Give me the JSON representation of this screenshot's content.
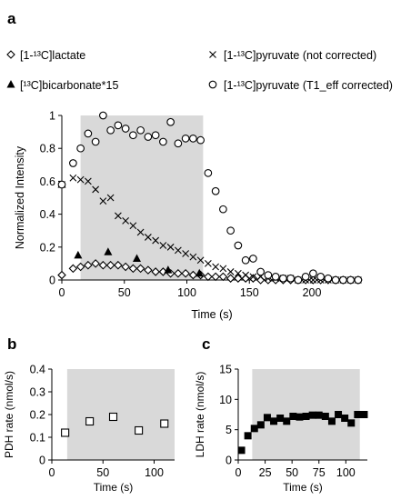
{
  "figure": {
    "panel_labels": [
      "a",
      "b",
      "c"
    ]
  },
  "chart_data": [
    {
      "panel": "a",
      "type": "scatter",
      "xlabel": "Time (s)",
      "ylabel": "Normalized Intensity",
      "xlim": [
        0,
        240
      ],
      "ylim": [
        0,
        1
      ],
      "xticks": [
        0,
        50,
        100,
        150,
        200
      ],
      "yticks": [
        0,
        0.2,
        0.4,
        0.6,
        0.8,
        1
      ],
      "ytick_labels": [
        "0",
        "0.2",
        "0.4",
        "0.6",
        "0.8",
        "1"
      ],
      "grid": false,
      "legend_position": "top",
      "shaded_region": [
        15,
        113
      ],
      "shade_color": "#d9d9d9",
      "series": [
        {
          "name": "[1-¹³C]lactate",
          "marker": "diamond-open",
          "x": [
            0,
            9,
            15,
            21,
            27,
            33,
            39,
            45,
            51,
            57,
            63,
            69,
            75,
            81,
            87,
            93,
            99,
            105,
            111,
            117,
            123,
            129,
            135,
            141,
            147,
            153,
            159,
            165,
            171,
            177,
            183,
            189,
            195,
            201,
            207,
            213,
            219,
            225,
            231,
            237
          ],
          "y": [
            0.03,
            0.07,
            0.08,
            0.09,
            0.1,
            0.09,
            0.09,
            0.09,
            0.08,
            0.07,
            0.07,
            0.06,
            0.05,
            0.05,
            0.04,
            0.04,
            0.04,
            0.03,
            0.03,
            0.02,
            0.02,
            0.02,
            0.01,
            0.01,
            0.01,
            0.01,
            0.0,
            0.0,
            0.0,
            0.0,
            0.0,
            0.0,
            0.0,
            0.0,
            0.0,
            0.0,
            0.0,
            0.0,
            0.0,
            0.0
          ]
        },
        {
          "name": "[1-¹³C]pyruvate (not corrected)",
          "marker": "x",
          "x": [
            0,
            9,
            15,
            21,
            27,
            33,
            39,
            45,
            51,
            57,
            63,
            69,
            75,
            81,
            87,
            93,
            99,
            105,
            111,
            117,
            123,
            129,
            135,
            141,
            147,
            153,
            159,
            165,
            171,
            177,
            183,
            189,
            195,
            201,
            207,
            213,
            219,
            225,
            231,
            237
          ],
          "y": [
            0.58,
            0.62,
            0.61,
            0.6,
            0.55,
            0.48,
            0.5,
            0.39,
            0.36,
            0.33,
            0.29,
            0.26,
            0.24,
            0.21,
            0.2,
            0.18,
            0.16,
            0.14,
            0.12,
            0.1,
            0.08,
            0.07,
            0.05,
            0.04,
            0.03,
            0.02,
            0.02,
            0.01,
            0.01,
            0.01,
            0.01,
            0.0,
            0.0,
            0.0,
            0.0,
            0.0,
            0.0,
            0.0,
            0.0,
            0.0
          ]
        },
        {
          "name": "[¹³C]bicarbonate*15",
          "marker": "triangle-filled",
          "x": [
            0,
            13,
            37,
            60,
            85,
            110
          ],
          "y": [
            0.58,
            0.15,
            0.17,
            0.13,
            0.06,
            0.04
          ]
        },
        {
          "name": "[1-¹³C]pyruvate (T1_eff corrected)",
          "marker": "circle-open",
          "x": [
            0,
            9,
            15,
            21,
            27,
            33,
            39,
            45,
            51,
            57,
            63,
            69,
            75,
            81,
            87,
            93,
            99,
            105,
            111,
            117,
            123,
            129,
            135,
            141,
            147,
            153,
            159,
            165,
            171,
            177,
            183,
            189,
            195,
            201,
            207,
            213,
            219,
            225,
            231,
            237
          ],
          "y": [
            0.58,
            0.71,
            0.8,
            0.89,
            0.84,
            1.0,
            0.91,
            0.94,
            0.92,
            0.88,
            0.91,
            0.87,
            0.88,
            0.84,
            0.96,
            0.83,
            0.86,
            0.86,
            0.85,
            0.65,
            0.54,
            0.43,
            0.3,
            0.21,
            0.12,
            0.13,
            0.05,
            0.03,
            0.02,
            0.01,
            0.01,
            0.0,
            0.02,
            0.04,
            0.02,
            0.01,
            0.0,
            0.0,
            0.0,
            0.0
          ]
        }
      ]
    },
    {
      "panel": "b",
      "type": "scatter",
      "xlabel": "Time (s)",
      "ylabel": "PDH rate (nmol/s)",
      "xlim": [
        0,
        120
      ],
      "ylim": [
        0,
        0.4
      ],
      "xticks": [
        0,
        50,
        100
      ],
      "yticks": [
        0,
        0.1,
        0.2,
        0.3,
        0.4
      ],
      "ytick_labels": [
        "0",
        "0.1",
        "0.2",
        "0.3",
        "0.4"
      ],
      "grid": false,
      "shaded_region": [
        15,
        120
      ],
      "shade_color": "#d9d9d9",
      "series": [
        {
          "marker": "square-open",
          "x": [
            13,
            37,
            60,
            85,
            110
          ],
          "y": [
            0.12,
            0.17,
            0.19,
            0.13,
            0.16
          ]
        }
      ]
    },
    {
      "panel": "c",
      "type": "scatter",
      "xlabel": "Time (s)",
      "ylabel": "LDH rate (nmol/s)",
      "xlim": [
        0,
        120
      ],
      "ylim": [
        0,
        15
      ],
      "xticks": [
        0,
        25,
        50,
        75,
        100
      ],
      "yticks": [
        0,
        5,
        10,
        15
      ],
      "ytick_labels": [
        "0",
        "5",
        "10",
        "15"
      ],
      "grid": false,
      "shaded_region": [
        13,
        113
      ],
      "shade_color": "#d9d9d9",
      "series": [
        {
          "marker": "square-filled",
          "x": [
            3,
            9,
            15,
            21,
            27,
            33,
            39,
            45,
            51,
            57,
            63,
            69,
            75,
            81,
            87,
            93,
            99,
            105,
            111,
            117
          ],
          "y": [
            1.6,
            4.0,
            5.2,
            5.8,
            7.0,
            6.4,
            6.9,
            6.4,
            7.2,
            7.1,
            7.2,
            7.4,
            7.4,
            7.2,
            6.4,
            7.5,
            6.9,
            6.1,
            7.5,
            7.5
          ]
        }
      ]
    }
  ]
}
